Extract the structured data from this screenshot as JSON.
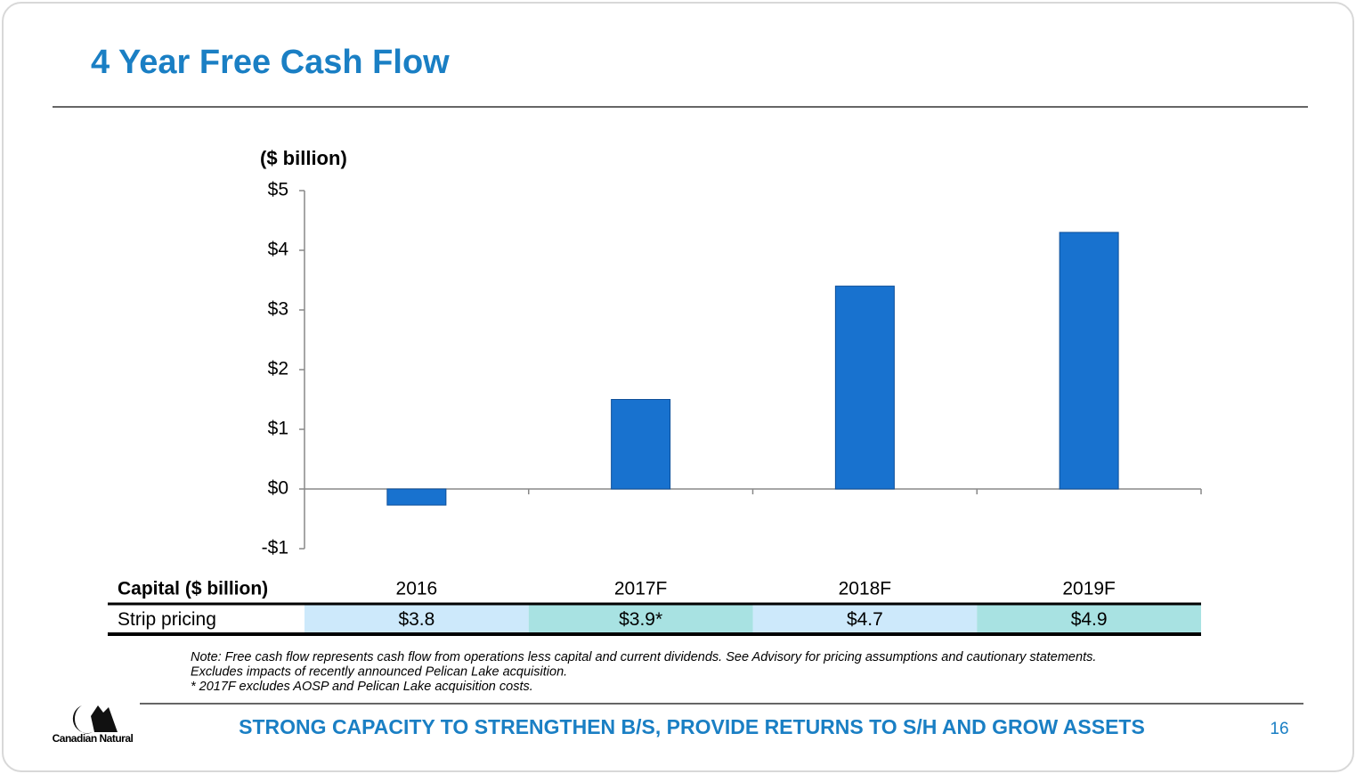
{
  "chart_data": {
    "type": "bar",
    "title": "4 Year Free Cash Flow",
    "y_label": "($ billion)",
    "categories": [
      "2016",
      "2017F",
      "2018F",
      "2019F"
    ],
    "values": [
      -0.27,
      1.5,
      3.4,
      4.3
    ],
    "color": "#1872cf",
    "ylim": [
      -1,
      5
    ],
    "yticks": [
      {
        "value": -1,
        "label": "-$1"
      },
      {
        "value": 0,
        "label": "$0"
      },
      {
        "value": 1,
        "label": "$1"
      },
      {
        "value": 2,
        "label": "$2"
      },
      {
        "value": 3,
        "label": "$3"
      },
      {
        "value": 4,
        "label": "$4"
      },
      {
        "value": 5,
        "label": "$5"
      }
    ],
    "grid": false,
    "table": {
      "header": "Capital ($ billion)",
      "rows": [
        {
          "label": "Strip pricing",
          "cells": [
            "$3.8",
            "$3.9*",
            "$4.7",
            "$4.9"
          ]
        }
      ]
    },
    "notes": [
      "Note: Free cash flow represents cash flow from operations less capital and current dividends. See Advisory for pricing assumptions and cautionary statements.",
      "Excludes impacts of recently announced Pelican Lake acquisition.",
      "* 2017F excludes AOSP and Pelican Lake acquisition costs."
    ]
  },
  "footer": {
    "tagline": "STRONG CAPACITY TO STRENGTHEN B/S, PROVIDE RETURNS TO S/H AND GROW ASSETS",
    "page": 16,
    "logo": "Canadian Natural"
  }
}
